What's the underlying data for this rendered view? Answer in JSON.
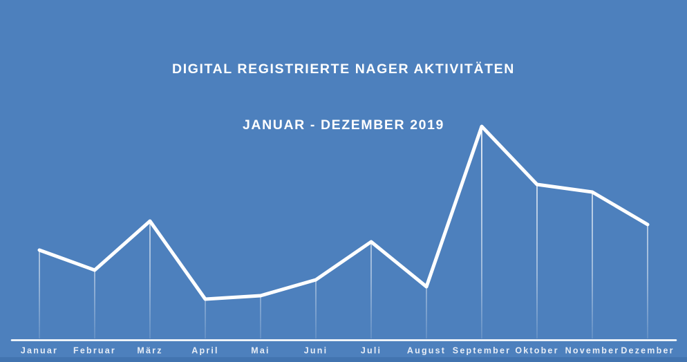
{
  "title": {
    "line1": "DIGITAL REGISTRIERTE NAGER AKTIVITÄTEN",
    "line2": "JANUAR - DEZEMBER 2019"
  },
  "colors": {
    "background": "#4d80bd",
    "footer_strip": "#4274b0",
    "line": "#ffffff",
    "axis_line": "#ffffff",
    "label_text": "#e7edf6",
    "title_text": "#ffffff"
  },
  "chart_data": {
    "type": "line",
    "title": "DIGITAL REGISTRIERTE NAGER AKTIVITÄTEN JANUAR - DEZEMBER 2019",
    "categories": [
      "Januar",
      "Februar",
      "März",
      "April",
      "Mai",
      "Juni",
      "Juli",
      "August",
      "September",
      "Oktober",
      "November",
      "Dezember"
    ],
    "values": [
      130,
      101,
      172,
      59,
      64,
      87,
      142,
      77,
      309,
      225,
      214,
      167
    ],
    "xlabel": "",
    "ylabel": "",
    "ylim": [
      0,
      360
    ],
    "y_axis_visible": false,
    "grid": false,
    "legend": false,
    "marker_drop_lines": true
  }
}
